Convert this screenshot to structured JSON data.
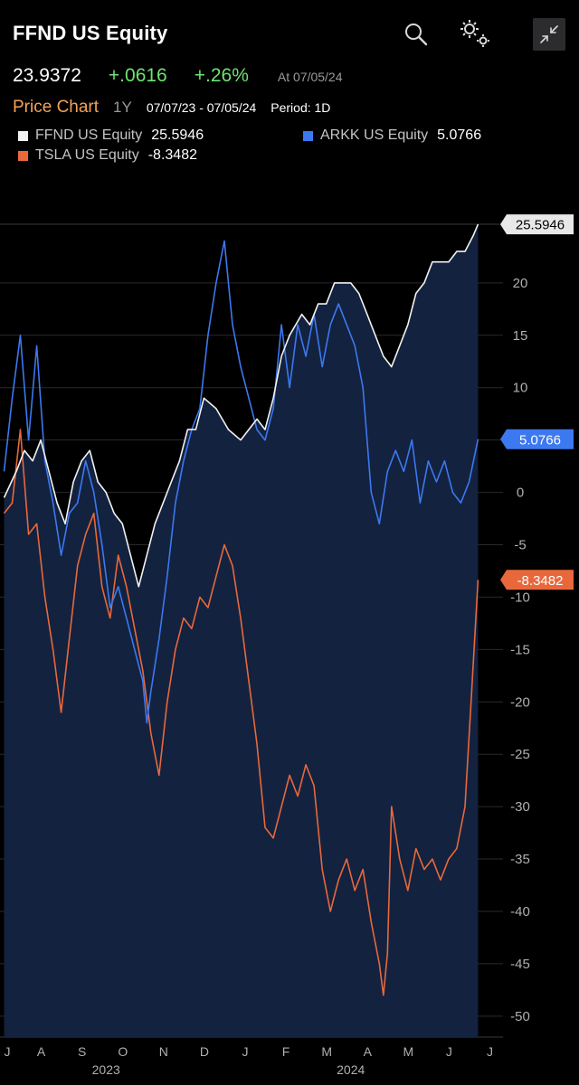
{
  "header": {
    "title": "FFND US Equity",
    "search_icon": "search-icon",
    "settings_icon": "gears-icon",
    "collapse_icon": "collapse-arrows-icon"
  },
  "quote": {
    "price": "23.9372",
    "change": "+.0616",
    "change_pct": "+.26%",
    "as_of": "At 07/05/24"
  },
  "chart_header": {
    "title": "Price Chart",
    "range": "1Y",
    "dates": "07/07/23 - 07/05/24",
    "period": "Period: 1D"
  },
  "colors": {
    "background": "#000000",
    "plot_fill": "#13223f",
    "ffnd": "#f2f2f2",
    "arkk": "#3c78f0",
    "tsla": "#e8683c",
    "positive": "#6fe36f",
    "accent": "#f4a259"
  },
  "chart_data": {
    "type": "line",
    "title": "Price Chart",
    "ylim": [
      -52,
      27.5
    ],
    "yticks": [
      "20",
      "15",
      "10",
      "5",
      "0",
      "-5",
      "-10",
      "-15",
      "-20",
      "-25",
      "-30",
      "-35",
      "-40",
      "-45",
      "-50"
    ],
    "ytick_values": [
      20,
      15,
      10,
      5,
      0,
      -5,
      -10,
      -15,
      -20,
      -25,
      -30,
      -35,
      -40,
      -45,
      -50
    ],
    "x_months": [
      "J",
      "A",
      "S",
      "O",
      "N",
      "D",
      "J",
      "F",
      "M",
      "A",
      "M",
      "J",
      "J"
    ],
    "x_years": [
      "2023",
      "2024"
    ],
    "x_year_positions": [
      2.5,
      8.5
    ],
    "x_range": [
      -0.1,
      11.9
    ],
    "series": [
      {
        "name": "FFND US Equity",
        "last": "25.5946",
        "last_value": 25.5946,
        "points": [
          [
            0,
            -0.5
          ],
          [
            0.3,
            2
          ],
          [
            0.5,
            4
          ],
          [
            0.7,
            3
          ],
          [
            0.9,
            5
          ],
          [
            1.1,
            2
          ],
          [
            1.3,
            -1
          ],
          [
            1.5,
            -3
          ],
          [
            1.7,
            1
          ],
          [
            1.9,
            3
          ],
          [
            2.1,
            4
          ],
          [
            2.3,
            1
          ],
          [
            2.5,
            0
          ],
          [
            2.7,
            -2
          ],
          [
            2.9,
            -3
          ],
          [
            3.1,
            -6
          ],
          [
            3.3,
            -9
          ],
          [
            3.5,
            -6
          ],
          [
            3.7,
            -3
          ],
          [
            3.9,
            -1
          ],
          [
            4.1,
            1
          ],
          [
            4.3,
            3
          ],
          [
            4.5,
            6
          ],
          [
            4.7,
            6
          ],
          [
            4.9,
            9
          ],
          [
            5.2,
            8
          ],
          [
            5.5,
            6
          ],
          [
            5.8,
            5
          ],
          [
            6.0,
            6
          ],
          [
            6.2,
            7
          ],
          [
            6.4,
            6
          ],
          [
            6.6,
            9
          ],
          [
            6.8,
            13
          ],
          [
            7.0,
            15
          ],
          [
            7.3,
            17
          ],
          [
            7.5,
            16
          ],
          [
            7.7,
            18
          ],
          [
            7.9,
            18
          ],
          [
            8.1,
            20
          ],
          [
            8.3,
            20
          ],
          [
            8.5,
            20
          ],
          [
            8.7,
            19
          ],
          [
            8.9,
            17
          ],
          [
            9.1,
            15
          ],
          [
            9.3,
            13
          ],
          [
            9.5,
            12
          ],
          [
            9.7,
            14
          ],
          [
            9.9,
            16
          ],
          [
            10.1,
            19
          ],
          [
            10.3,
            20
          ],
          [
            10.5,
            22
          ],
          [
            10.7,
            22
          ],
          [
            10.9,
            22
          ],
          [
            11.1,
            23
          ],
          [
            11.3,
            23
          ],
          [
            11.5,
            24.5
          ],
          [
            11.62,
            25.5946
          ]
        ]
      },
      {
        "name": "ARKK US Equity",
        "last": "5.0766",
        "last_value": 5.0766,
        "points": [
          [
            0,
            2
          ],
          [
            0.2,
            9
          ],
          [
            0.4,
            15
          ],
          [
            0.6,
            5
          ],
          [
            0.8,
            14
          ],
          [
            1.0,
            3
          ],
          [
            1.2,
            -1
          ],
          [
            1.4,
            -6
          ],
          [
            1.6,
            -2
          ],
          [
            1.8,
            -1
          ],
          [
            2.0,
            3
          ],
          [
            2.2,
            0
          ],
          [
            2.4,
            -5
          ],
          [
            2.6,
            -11
          ],
          [
            2.8,
            -9
          ],
          [
            3.0,
            -12
          ],
          [
            3.2,
            -15
          ],
          [
            3.4,
            -18
          ],
          [
            3.5,
            -22
          ],
          [
            3.6,
            -19
          ],
          [
            3.8,
            -14
          ],
          [
            4.0,
            -8
          ],
          [
            4.2,
            -1
          ],
          [
            4.4,
            3
          ],
          [
            4.6,
            6
          ],
          [
            4.8,
            8
          ],
          [
            5.0,
            15
          ],
          [
            5.2,
            20
          ],
          [
            5.4,
            24
          ],
          [
            5.6,
            16
          ],
          [
            5.8,
            12
          ],
          [
            6.0,
            9
          ],
          [
            6.2,
            6
          ],
          [
            6.4,
            5
          ],
          [
            6.6,
            8
          ],
          [
            6.8,
            16
          ],
          [
            7.0,
            10
          ],
          [
            7.2,
            16
          ],
          [
            7.4,
            13
          ],
          [
            7.6,
            17
          ],
          [
            7.8,
            12
          ],
          [
            8.0,
            16
          ],
          [
            8.2,
            18
          ],
          [
            8.4,
            16
          ],
          [
            8.6,
            14
          ],
          [
            8.8,
            10
          ],
          [
            9.0,
            0
          ],
          [
            9.2,
            -3
          ],
          [
            9.4,
            2
          ],
          [
            9.6,
            4
          ],
          [
            9.8,
            2
          ],
          [
            10.0,
            5
          ],
          [
            10.2,
            -1
          ],
          [
            10.4,
            3
          ],
          [
            10.6,
            1
          ],
          [
            10.8,
            3
          ],
          [
            11.0,
            0
          ],
          [
            11.2,
            -1
          ],
          [
            11.4,
            1
          ],
          [
            11.62,
            5.0766
          ]
        ]
      },
      {
        "name": "TSLA US Equity",
        "last": "-8.3482",
        "last_value": -8.3482,
        "points": [
          [
            0,
            -2
          ],
          [
            0.2,
            -1
          ],
          [
            0.4,
            6
          ],
          [
            0.6,
            -4
          ],
          [
            0.8,
            -3
          ],
          [
            1.0,
            -10
          ],
          [
            1.2,
            -15
          ],
          [
            1.4,
            -21
          ],
          [
            1.6,
            -14
          ],
          [
            1.8,
            -7
          ],
          [
            2.0,
            -4
          ],
          [
            2.2,
            -2
          ],
          [
            2.4,
            -9
          ],
          [
            2.6,
            -12
          ],
          [
            2.8,
            -6
          ],
          [
            3.0,
            -9
          ],
          [
            3.2,
            -13
          ],
          [
            3.4,
            -17
          ],
          [
            3.6,
            -23
          ],
          [
            3.8,
            -27
          ],
          [
            4.0,
            -20
          ],
          [
            4.2,
            -15
          ],
          [
            4.4,
            -12
          ],
          [
            4.6,
            -13
          ],
          [
            4.8,
            -10
          ],
          [
            5.0,
            -11
          ],
          [
            5.2,
            -8
          ],
          [
            5.4,
            -5
          ],
          [
            5.6,
            -7
          ],
          [
            5.8,
            -12
          ],
          [
            6.0,
            -18
          ],
          [
            6.2,
            -24
          ],
          [
            6.4,
            -32
          ],
          [
            6.6,
            -33
          ],
          [
            6.8,
            -30
          ],
          [
            7.0,
            -27
          ],
          [
            7.2,
            -29
          ],
          [
            7.4,
            -26
          ],
          [
            7.6,
            -28
          ],
          [
            7.8,
            -36
          ],
          [
            8.0,
            -40
          ],
          [
            8.2,
            -37
          ],
          [
            8.4,
            -35
          ],
          [
            8.6,
            -38
          ],
          [
            8.8,
            -36
          ],
          [
            9.0,
            -41
          ],
          [
            9.2,
            -45
          ],
          [
            9.3,
            -48
          ],
          [
            9.4,
            -44
          ],
          [
            9.5,
            -30
          ],
          [
            9.7,
            -35
          ],
          [
            9.9,
            -38
          ],
          [
            10.1,
            -34
          ],
          [
            10.3,
            -36
          ],
          [
            10.5,
            -35
          ],
          [
            10.7,
            -37
          ],
          [
            10.9,
            -35
          ],
          [
            11.1,
            -34
          ],
          [
            11.3,
            -30
          ],
          [
            11.45,
            -20
          ],
          [
            11.62,
            -8.3482
          ]
        ]
      }
    ]
  }
}
